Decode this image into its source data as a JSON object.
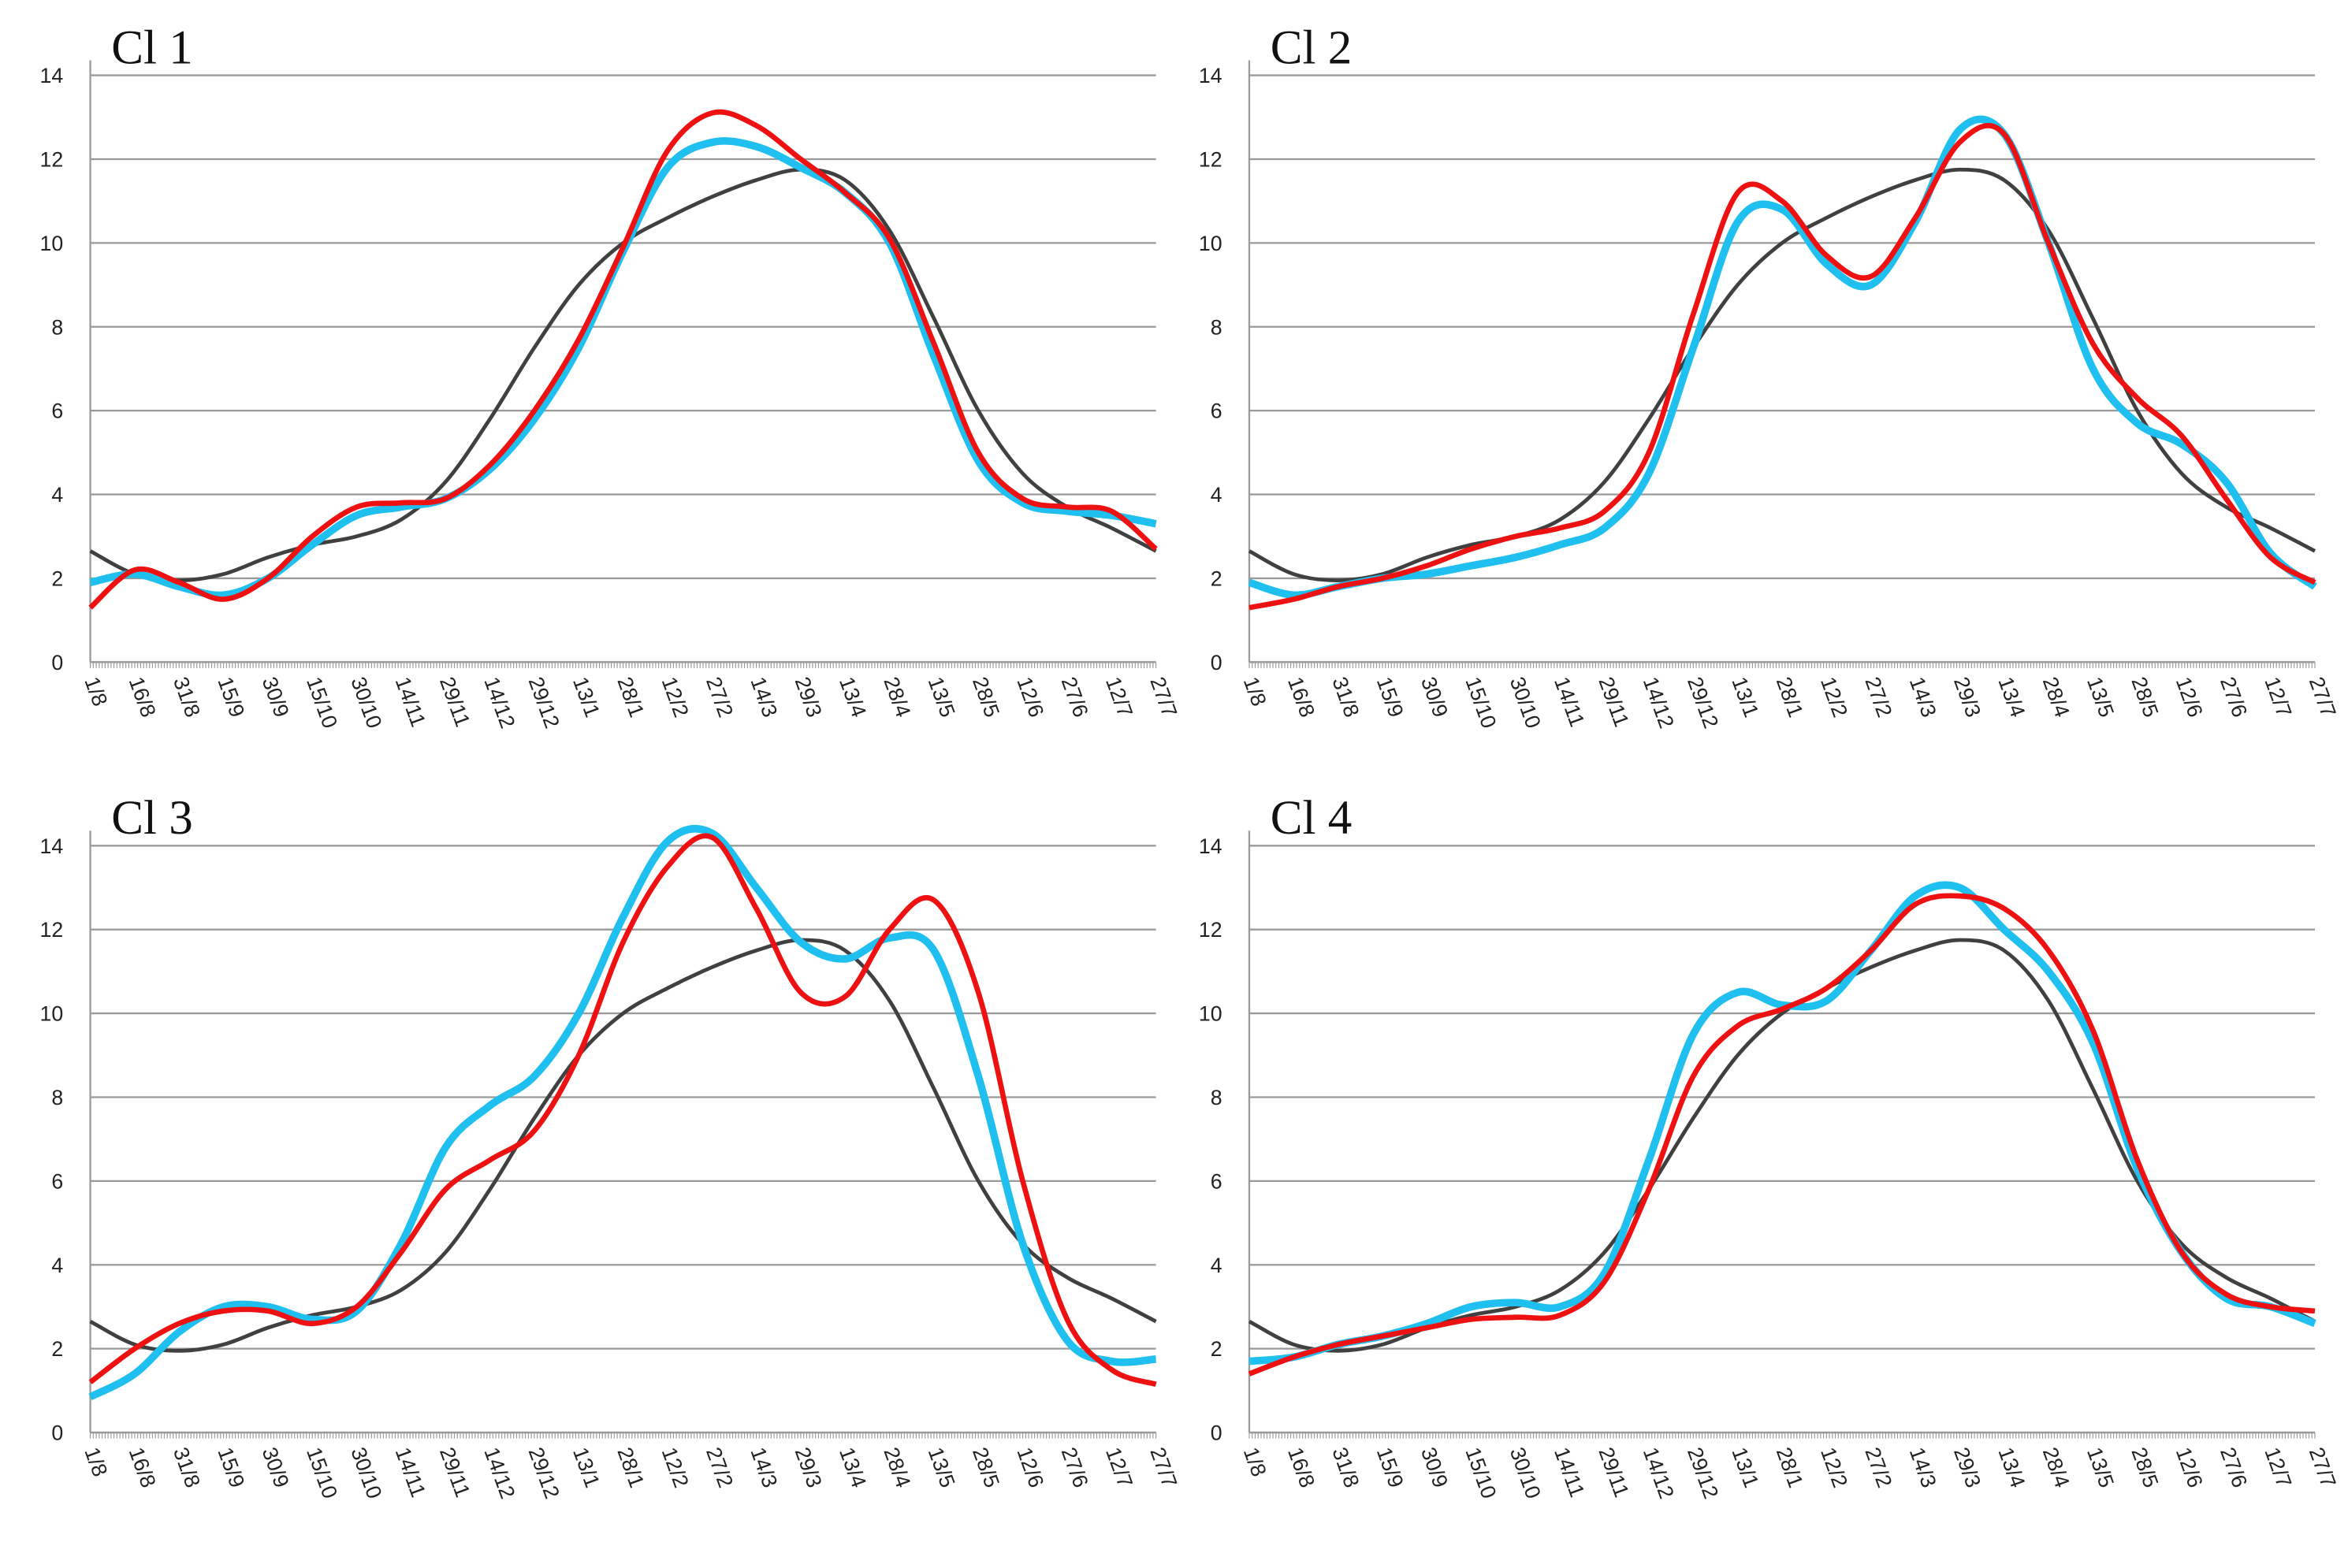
{
  "chart_data": [
    {
      "type": "line",
      "title": "Cl 1",
      "categories": [
        "1/8",
        "16/8",
        "31/8",
        "15/9",
        "30/9",
        "15/10",
        "30/10",
        "14/11",
        "29/11",
        "14/12",
        "29/12",
        "13/1",
        "28/1",
        "12/2",
        "27/2",
        "14/3",
        "29/3",
        "13/4",
        "28/4",
        "13/5",
        "28/5",
        "12/6",
        "27/6",
        "12/7",
        "27/7"
      ],
      "series": [
        {
          "color": "#404040",
          "values": [
            2.65,
            2.1,
            1.95,
            2.1,
            2.5,
            2.8,
            3.0,
            3.4,
            4.3,
            5.8,
            7.5,
            9.0,
            10.0,
            10.6,
            11.1,
            11.5,
            11.75,
            11.5,
            10.3,
            8.2,
            6.0,
            4.5,
            3.7,
            3.2,
            2.65
          ]
        },
        {
          "color": "#1fbfef",
          "values": [
            1.9,
            2.1,
            1.8,
            1.6,
            2.0,
            2.8,
            3.5,
            3.7,
            3.9,
            4.6,
            5.8,
            7.5,
            9.8,
            11.8,
            12.4,
            12.3,
            11.8,
            11.2,
            10.0,
            7.3,
            4.8,
            3.8,
            3.6,
            3.5,
            3.3
          ]
        },
        {
          "color": "#ee1111",
          "values": [
            1.3,
            2.2,
            1.9,
            1.5,
            2.0,
            3.0,
            3.7,
            3.8,
            3.9,
            4.7,
            6.0,
            7.7,
            9.9,
            12.2,
            13.1,
            12.8,
            12.0,
            11.2,
            10.1,
            7.6,
            5.0,
            3.9,
            3.7,
            3.6,
            2.7
          ]
        }
      ],
      "ylim": [
        0,
        14
      ],
      "yticks": [
        0,
        2,
        4,
        6,
        8,
        10,
        12,
        14
      ],
      "grid": true
    },
    {
      "type": "line",
      "title": "Cl 2",
      "categories": [
        "1/8",
        "16/8",
        "31/8",
        "15/9",
        "30/9",
        "15/10",
        "30/10",
        "14/11",
        "29/11",
        "14/12",
        "29/12",
        "13/1",
        "28/1",
        "12/2",
        "27/2",
        "14/3",
        "29/3",
        "13/4",
        "28/4",
        "13/5",
        "28/5",
        "12/6",
        "27/6",
        "12/7",
        "27/7"
      ],
      "series": [
        {
          "color": "#404040",
          "values": [
            2.65,
            2.1,
            1.95,
            2.1,
            2.5,
            2.8,
            3.0,
            3.4,
            4.3,
            5.8,
            7.5,
            9.0,
            10.0,
            10.6,
            11.1,
            11.5,
            11.75,
            11.5,
            10.3,
            8.2,
            6.0,
            4.5,
            3.7,
            3.2,
            2.65
          ]
        },
        {
          "color": "#1fbfef",
          "values": [
            1.9,
            1.6,
            1.8,
            2.0,
            2.1,
            2.3,
            2.5,
            2.8,
            3.2,
            4.5,
            7.5,
            10.5,
            10.8,
            9.5,
            9.0,
            10.5,
            12.7,
            12.6,
            10.0,
            7.0,
            5.7,
            5.2,
            4.3,
            2.6,
            1.8
          ]
        },
        {
          "color": "#ee1111",
          "values": [
            1.3,
            1.5,
            1.8,
            2.0,
            2.3,
            2.7,
            3.0,
            3.2,
            3.6,
            5.0,
            8.3,
            11.2,
            11.0,
            9.7,
            9.2,
            10.6,
            12.4,
            12.6,
            10.0,
            7.6,
            6.3,
            5.4,
            3.9,
            2.5,
            1.9
          ]
        }
      ],
      "ylim": [
        0,
        14
      ],
      "yticks": [
        0,
        2,
        4,
        6,
        8,
        10,
        12,
        14
      ],
      "grid": true
    },
    {
      "type": "line",
      "title": "Cl 3",
      "categories": [
        "1/8",
        "16/8",
        "31/8",
        "15/9",
        "30/9",
        "15/10",
        "30/10",
        "14/11",
        "29/11",
        "14/12",
        "29/12",
        "13/1",
        "28/1",
        "12/2",
        "27/2",
        "14/3",
        "29/3",
        "13/4",
        "28/4",
        "13/5",
        "28/5",
        "12/6",
        "27/6",
        "12/7",
        "27/7"
      ],
      "series": [
        {
          "color": "#404040",
          "values": [
            2.65,
            2.1,
            1.95,
            2.1,
            2.5,
            2.8,
            3.0,
            3.4,
            4.3,
            5.8,
            7.5,
            9.0,
            10.0,
            10.6,
            11.1,
            11.5,
            11.75,
            11.5,
            10.3,
            8.2,
            6.0,
            4.5,
            3.7,
            3.2,
            2.65
          ]
        },
        {
          "color": "#1fbfef",
          "values": [
            0.85,
            1.4,
            2.4,
            3.0,
            3.0,
            2.7,
            2.9,
            4.5,
            6.8,
            7.8,
            8.5,
            10.0,
            12.3,
            14.1,
            14.3,
            13.0,
            11.7,
            11.3,
            11.8,
            11.5,
            8.5,
            4.5,
            2.2,
            1.7,
            1.75
          ]
        },
        {
          "color": "#ee1111",
          "values": [
            1.2,
            2.0,
            2.6,
            2.9,
            2.9,
            2.6,
            3.0,
            4.3,
            5.8,
            6.5,
            7.2,
            9.0,
            11.7,
            13.5,
            14.2,
            12.5,
            10.5,
            10.4,
            12.0,
            12.7,
            10.5,
            6.0,
            2.7,
            1.5,
            1.15
          ]
        }
      ],
      "ylim": [
        0,
        14
      ],
      "yticks": [
        0,
        2,
        4,
        6,
        8,
        10,
        12,
        14
      ],
      "grid": true
    },
    {
      "type": "line",
      "title": "Cl 4",
      "categories": [
        "1/8",
        "16/8",
        "31/8",
        "15/9",
        "30/9",
        "15/10",
        "30/10",
        "14/11",
        "29/11",
        "14/12",
        "29/12",
        "13/1",
        "28/1",
        "12/2",
        "27/2",
        "14/3",
        "29/3",
        "13/4",
        "28/4",
        "13/5",
        "28/5",
        "12/6",
        "27/6",
        "12/7",
        "27/7"
      ],
      "series": [
        {
          "color": "#404040",
          "values": [
            2.65,
            2.1,
            1.95,
            2.1,
            2.5,
            2.8,
            3.0,
            3.4,
            4.3,
            5.8,
            7.5,
            9.0,
            10.0,
            10.6,
            11.1,
            11.5,
            11.75,
            11.5,
            10.3,
            8.2,
            6.0,
            4.5,
            3.7,
            3.2,
            2.65
          ]
        },
        {
          "color": "#1fbfef",
          "values": [
            1.7,
            1.8,
            2.1,
            2.3,
            2.6,
            3.0,
            3.1,
            3.0,
            3.8,
            6.5,
            9.5,
            10.5,
            10.2,
            10.3,
            11.5,
            12.8,
            13.0,
            12.0,
            11.0,
            9.3,
            6.3,
            4.3,
            3.2,
            3.0,
            2.6
          ]
        },
        {
          "color": "#ee1111",
          "values": [
            1.4,
            1.8,
            2.1,
            2.3,
            2.5,
            2.7,
            2.75,
            2.8,
            3.6,
            5.8,
            8.5,
            9.7,
            10.1,
            10.6,
            11.5,
            12.6,
            12.8,
            12.5,
            11.5,
            9.6,
            6.5,
            4.3,
            3.3,
            3.0,
            2.9
          ]
        }
      ],
      "ylim": [
        0,
        14
      ],
      "yticks": [
        0,
        2,
        4,
        6,
        8,
        10,
        12,
        14
      ],
      "grid": true
    }
  ]
}
